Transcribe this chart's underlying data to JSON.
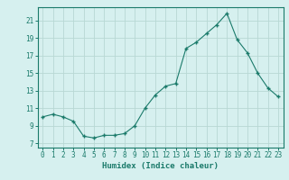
{
  "x": [
    0,
    1,
    2,
    3,
    4,
    5,
    6,
    7,
    8,
    9,
    10,
    11,
    12,
    13,
    14,
    15,
    16,
    17,
    18,
    19,
    20,
    21,
    22,
    23
  ],
  "y": [
    10.0,
    10.3,
    10.0,
    9.5,
    7.8,
    7.6,
    7.9,
    7.9,
    8.1,
    9.0,
    11.0,
    12.5,
    13.5,
    13.8,
    17.8,
    18.5,
    19.5,
    20.5,
    21.8,
    18.8,
    17.3,
    15.0,
    13.3,
    12.3
  ],
  "xlabel": "Humidex (Indice chaleur)",
  "line_color": "#1a7a6a",
  "marker_color": "#1a7a6a",
  "bg_color": "#d6f0ef",
  "grid_color": "#b8d8d4",
  "axis_color": "#1a7a6a",
  "tick_color": "#1a7a6a",
  "ylim": [
    6.5,
    22.5
  ],
  "xlim": [
    -0.5,
    23.5
  ],
  "yticks": [
    7,
    9,
    11,
    13,
    15,
    17,
    19,
    21
  ],
  "xticks": [
    0,
    1,
    2,
    3,
    4,
    5,
    6,
    7,
    8,
    9,
    10,
    11,
    12,
    13,
    14,
    15,
    16,
    17,
    18,
    19,
    20,
    21,
    22,
    23
  ],
  "tick_fontsize": 5.5,
  "xlabel_fontsize": 6.5
}
